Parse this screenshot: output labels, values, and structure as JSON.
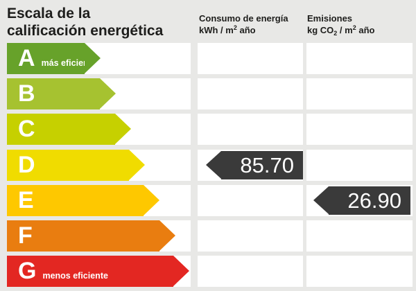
{
  "header": {
    "title_line1": "Escala de la",
    "title_line2": "calificación energética",
    "columns": [
      {
        "label": "Consumo de energía",
        "unit": {
          "prefix": "kWh / m",
          "sup": "2",
          "suffix": " año"
        }
      },
      {
        "label": "Emisiones",
        "unit": {
          "prefix": "kg CO",
          "sub": "2",
          "mid": " / m",
          "sup": "2",
          "suffix": " año"
        }
      }
    ]
  },
  "scale": {
    "rows": [
      {
        "letter": "A",
        "note": "más eficiente",
        "color": "#67a22a"
      },
      {
        "letter": "B",
        "note": "",
        "color": "#a6c230"
      },
      {
        "letter": "C",
        "note": "",
        "color": "#c6d000"
      },
      {
        "letter": "D",
        "note": "",
        "color": "#f0dc00"
      },
      {
        "letter": "E",
        "note": "",
        "color": "#fec800"
      },
      {
        "letter": "F",
        "note": "",
        "color": "#e97d10"
      },
      {
        "letter": "G",
        "note": "menos eficiente",
        "color": "#e32722"
      }
    ]
  },
  "values": {
    "consumo": {
      "value": "85.70",
      "rating_row": "D",
      "arrow_color": "#3a3a3a",
      "text_color": "#ffffff"
    },
    "emisiones": {
      "value": "26.90",
      "rating_row": "E",
      "arrow_color": "#3a3a3a",
      "text_color": "#ffffff"
    }
  },
  "chart_data": {
    "type": "bar",
    "title": "Escala de la calificación energética",
    "categories": [
      "A",
      "B",
      "C",
      "D",
      "E",
      "F",
      "G"
    ],
    "category_notes": {
      "A": "más eficiente",
      "G": "menos eficiente"
    },
    "series": [
      {
        "name": "Consumo de energía (kWh/m2 año)",
        "rating": "D",
        "value": 85.7
      },
      {
        "name": "Emisiones (kg CO2/m2 año)",
        "rating": "E",
        "value": 26.9
      }
    ],
    "palette": [
      "#67a22a",
      "#a6c230",
      "#c6d000",
      "#f0dc00",
      "#fec800",
      "#e97d10",
      "#e32722"
    ],
    "legend_position": "none",
    "grid": false
  }
}
